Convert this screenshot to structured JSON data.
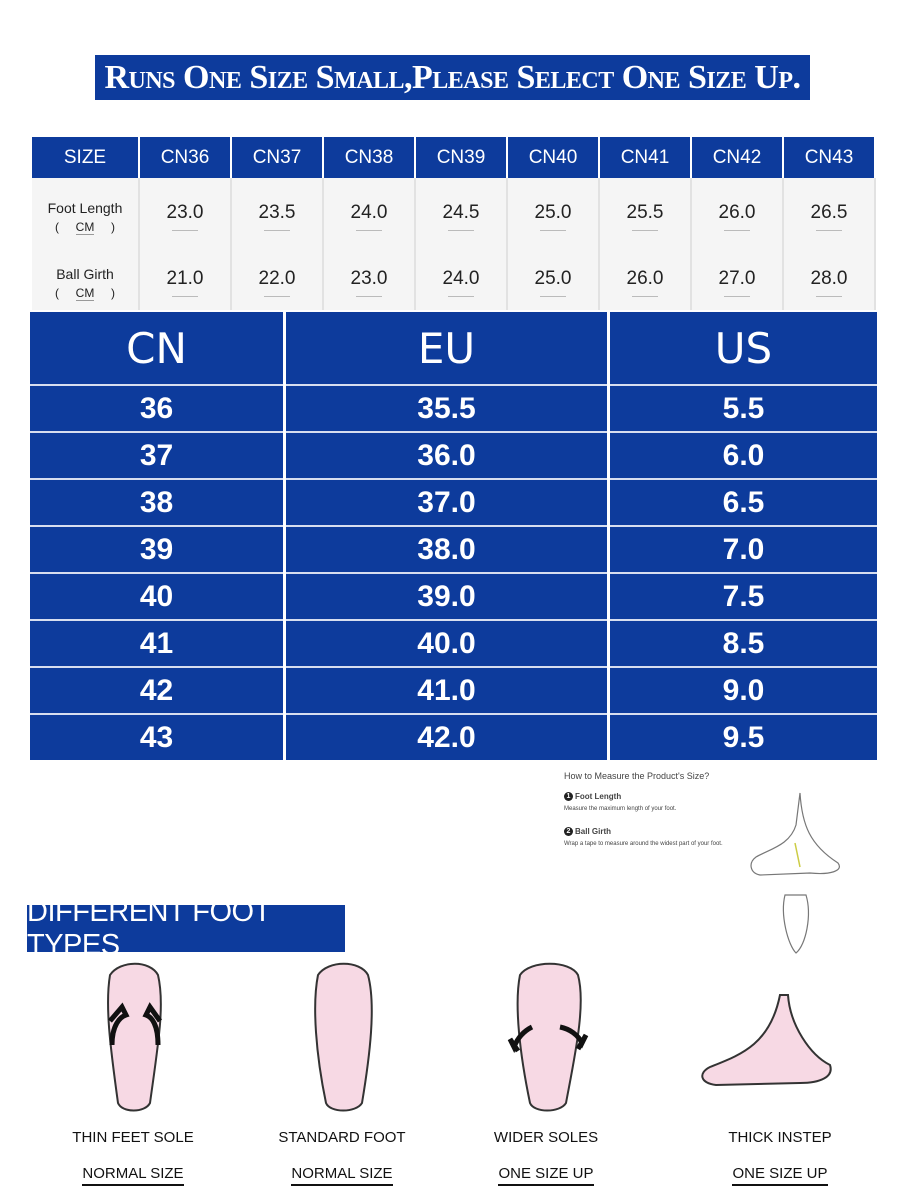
{
  "banner": "Runs One Size Small,Please Select One Size Up.",
  "size_table": {
    "header": [
      "SIZE",
      "CN36",
      "CN37",
      "CN38",
      "CN39",
      "CN40",
      "CN41",
      "CN42",
      "CN43"
    ],
    "rows": [
      {
        "label": "Foot Length",
        "unit": "CM",
        "values": [
          "23.0",
          "23.5",
          "24.0",
          "24.5",
          "25.0",
          "25.5",
          "26.0",
          "26.5"
        ]
      },
      {
        "label": "Ball Girth",
        "unit": "CM",
        "values": [
          "21.0",
          "22.0",
          "23.0",
          "24.0",
          "25.0",
          "26.0",
          "27.0",
          "28.0"
        ]
      }
    ]
  },
  "conversion_table": {
    "header": [
      "CN",
      "EU",
      "US"
    ],
    "rows": [
      [
        "36",
        "35.5",
        "5.5"
      ],
      [
        "37",
        "36.0",
        "6.0"
      ],
      [
        "38",
        "37.0",
        "6.5"
      ],
      [
        "39",
        "38.0",
        "7.0"
      ],
      [
        "40",
        "39.0",
        "7.5"
      ],
      [
        "41",
        "40.0",
        "8.5"
      ],
      [
        "42",
        "41.0",
        "9.0"
      ],
      [
        "43",
        "42.0",
        "9.5"
      ]
    ]
  },
  "measure": {
    "title": "How to Measure the Product's Size?",
    "steps": [
      {
        "number": "1",
        "label": "Foot Length",
        "desc": "Measure the maximum length of your foot."
      },
      {
        "number": "2",
        "label": "Ball Girth",
        "desc": "Wrap a tape to measure around the widest part of your foot."
      }
    ]
  },
  "foot_types": {
    "title": "DIFFERENT FOOT TYPES",
    "items": [
      {
        "name": "THIN FEET SOLE",
        "size": "NORMAL SIZE"
      },
      {
        "name": "STANDARD FOOT",
        "size": "NORMAL SIZE"
      },
      {
        "name": "WIDER SOLES",
        "size": "ONE SIZE UP"
      },
      {
        "name": "THICK INSTEP",
        "size": "ONE SIZE UP"
      }
    ]
  }
}
